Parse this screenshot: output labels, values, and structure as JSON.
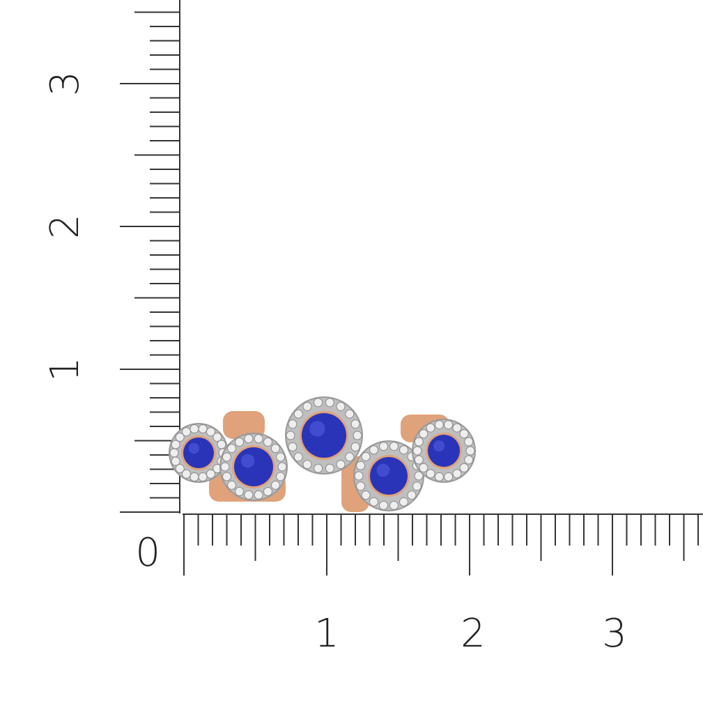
{
  "ruler": {
    "vertical_labels": [
      "0",
      "1",
      "2",
      "3"
    ],
    "horizontal_labels": [
      "1",
      "2",
      "3"
    ],
    "origin_label": "0",
    "subdivisions_per_unit": 10
  },
  "product": {
    "type": "ring",
    "stones": 5,
    "colors": {
      "sapphire": "#2a34b8",
      "gold": "#e0a27a",
      "diamond": "#d8d8d8",
      "ruler": "#333333"
    }
  }
}
